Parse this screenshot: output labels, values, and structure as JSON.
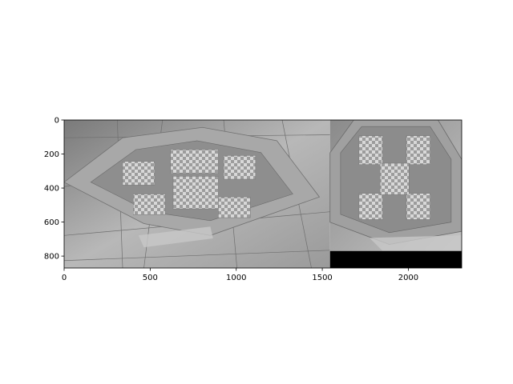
{
  "figure": {
    "background": "#ffffff"
  },
  "chart_data": {
    "type": "image",
    "title": "",
    "xlabel": "",
    "ylabel": "",
    "xlim": [
      0,
      2310
    ],
    "ylim": [
      870,
      0
    ],
    "x_ticks": [
      0,
      500,
      1000,
      1500,
      2000
    ],
    "y_ticks": [
      0,
      200,
      400,
      600,
      800
    ],
    "x_tick_labels": [
      "0",
      "500",
      "1000",
      "1500",
      "2000"
    ],
    "y_tick_labels": [
      "0",
      "200",
      "400",
      "600",
      "800"
    ],
    "colormap": "gray",
    "panels": [
      {
        "name": "left-photo",
        "x_range": [
          0,
          1545
        ],
        "y_range": [
          0,
          870
        ],
        "content": "grayscale photo of tiled floor with octagonal border and checkered mosaic pattern"
      },
      {
        "name": "right-photo",
        "x_range": [
          1545,
          2310
        ],
        "y_range": [
          0,
          770
        ],
        "content": "grayscale close-up of tiled floor mosaic with black padding below"
      }
    ],
    "padding_region": {
      "x_range": [
        1545,
        2310
      ],
      "y_range": [
        770,
        870
      ],
      "color": "#000000"
    }
  }
}
